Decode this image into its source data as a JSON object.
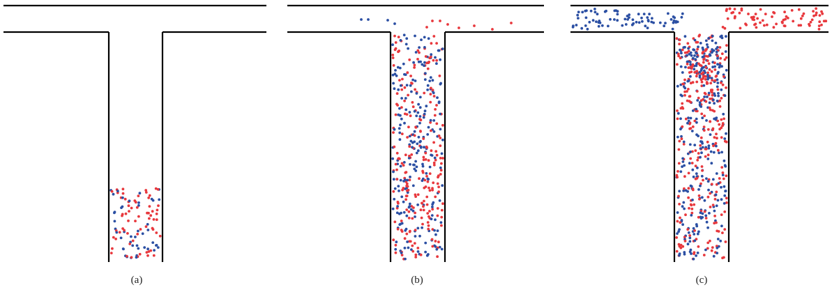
{
  "colors": {
    "wall": "#000000",
    "red_particle": "#e8383d",
    "blue_particle": "#2b4fa3"
  },
  "panels": [
    {
      "id": "a",
      "caption": "(a)"
    },
    {
      "id": "b",
      "caption": "(b)"
    },
    {
      "id": "c",
      "caption": "(c)"
    }
  ]
}
